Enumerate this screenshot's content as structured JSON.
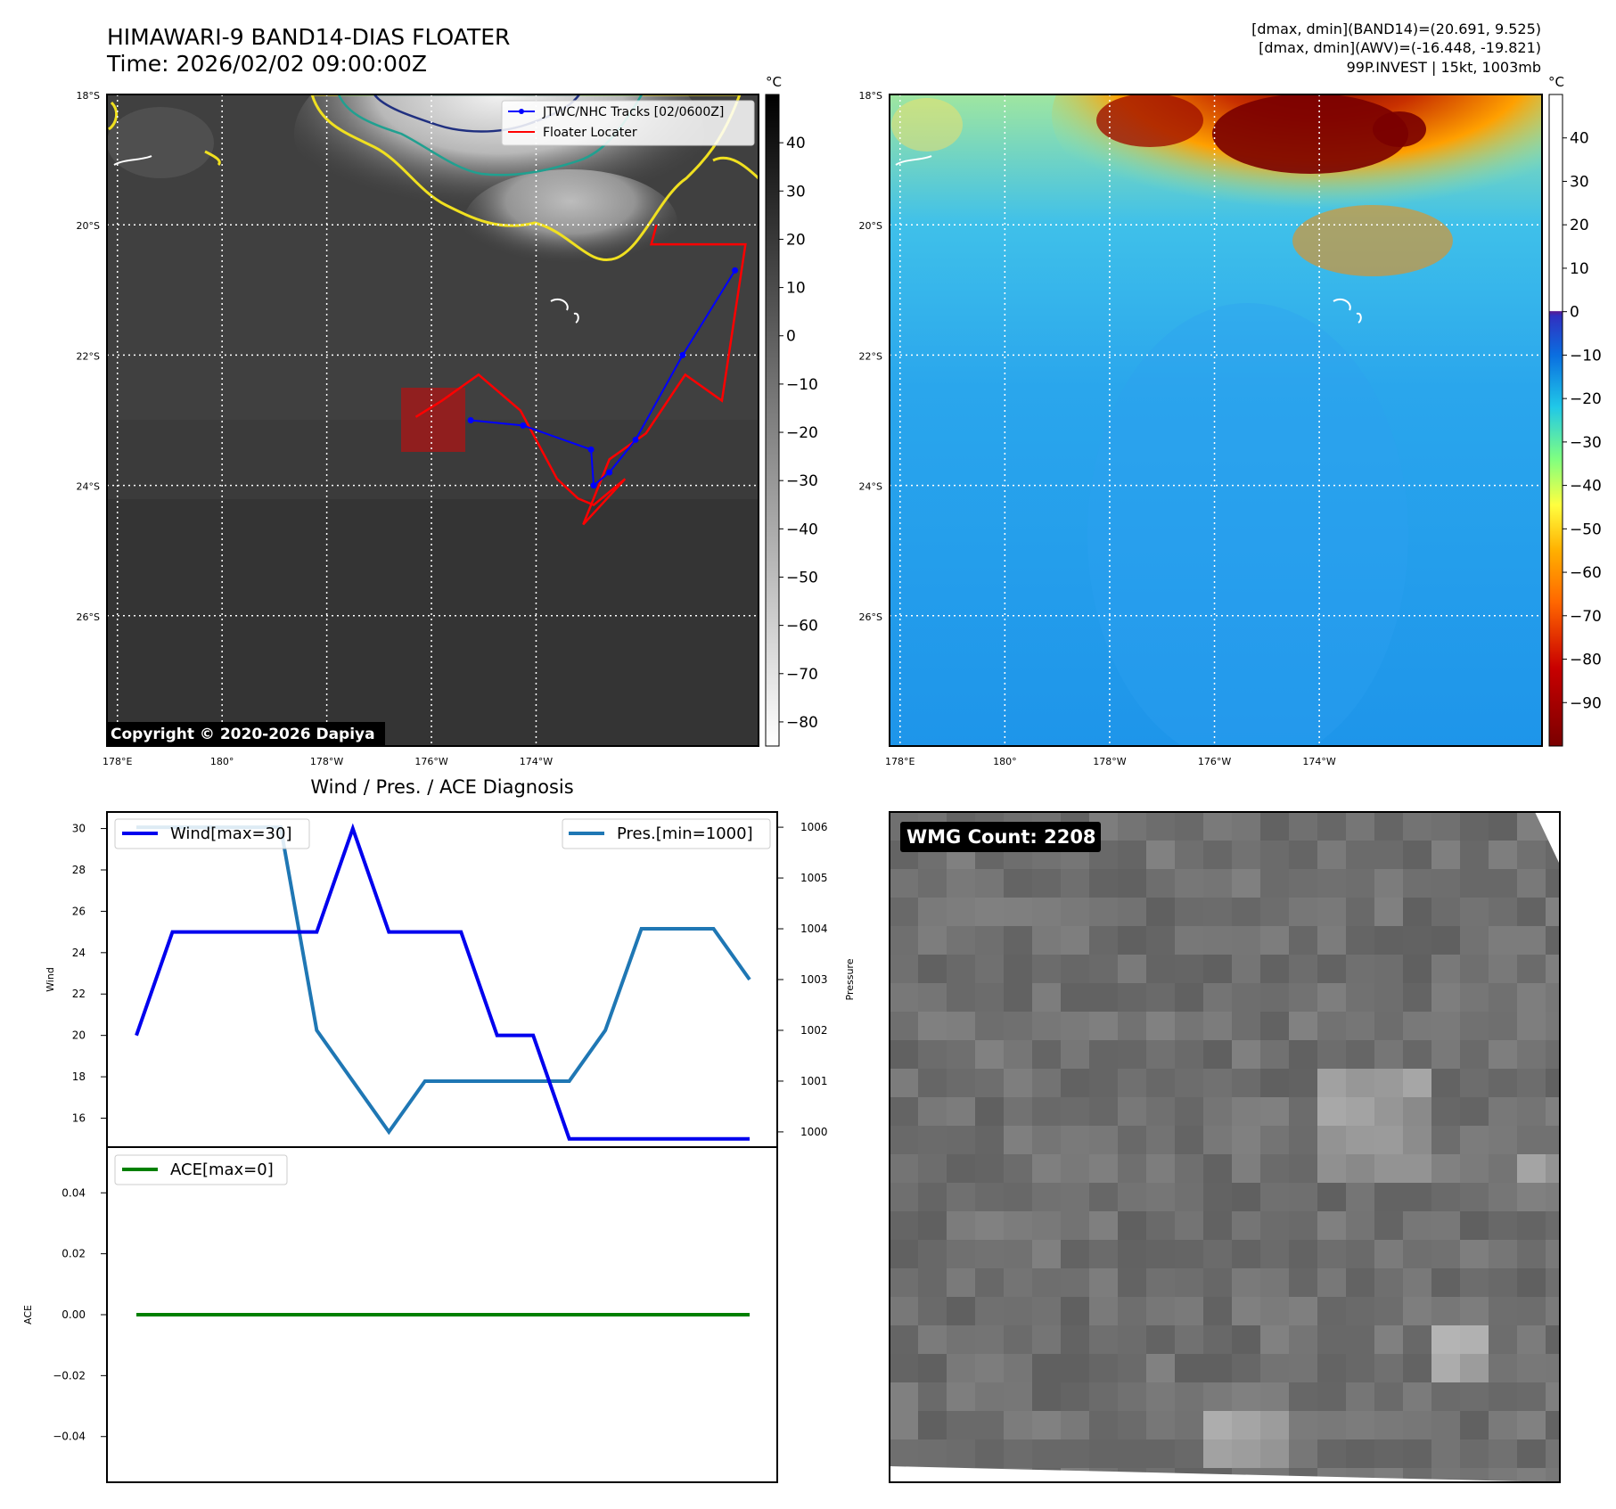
{
  "header": {
    "title_line1": "HIMAWARI-9 BAND14-DIAS FLOATER",
    "title_line2": "Time: 2026/02/02 09:00:00Z",
    "right_line1": "[dmax, dmin](BAND14)=(20.691, 9.525)",
    "right_line2": "[dmax, dmin](AWV)=(-16.448, -19.821)",
    "right_line3": "99P.INVEST | 15kt, 1003mb",
    "copyright": "Copyright © 2020-2026 Dapiya"
  },
  "map": {
    "lat_labels": [
      "18°S",
      "20°S",
      "22°S",
      "24°S",
      "26°S"
    ],
    "lon_labels": [
      "178°E",
      "180°",
      "178°W",
      "176°W",
      "174°W"
    ],
    "lat_values": [
      -18,
      -20,
      -22,
      -24,
      -26
    ],
    "lon_values": [
      178,
      180,
      182,
      184,
      186
    ],
    "legend_track": "JTWC/NHC Tracks [02/0600Z]",
    "legend_locater": "Floater Locater",
    "track_color": "#0000ff",
    "locater_color": "#ff0000",
    "track_points": [
      [
        184.75,
        -23.0
      ],
      [
        185.75,
        -23.08
      ],
      [
        187.05,
        -23.45
      ],
      [
        187.1,
        -24.0
      ],
      [
        187.4,
        -23.8
      ],
      [
        187.9,
        -23.3
      ],
      [
        188.8,
        -22.0
      ],
      [
        189.8,
        -20.7
      ]
    ],
    "locater_path": [
      [
        183.7,
        -22.95
      ],
      [
        184.2,
        -22.7
      ],
      [
        184.9,
        -22.3
      ],
      [
        185.7,
        -22.85
      ],
      [
        186.4,
        -23.9
      ],
      [
        186.8,
        -24.2
      ],
      [
        187.1,
        -24.3
      ],
      [
        187.7,
        -23.9
      ],
      [
        186.9,
        -24.6
      ],
      [
        187.4,
        -23.6
      ],
      [
        188.1,
        -23.2
      ],
      [
        188.85,
        -22.3
      ],
      [
        189.55,
        -22.7
      ],
      [
        190.0,
        -20.3
      ],
      [
        188.2,
        -20.3
      ],
      [
        188.3,
        -20.0
      ]
    ]
  },
  "colorbar_ir": {
    "unit": "°C",
    "ticks": [
      "40",
      "30",
      "20",
      "10",
      "0",
      "−10",
      "−20",
      "−30",
      "−40",
      "−50",
      "−60",
      "−70",
      "−80"
    ],
    "tick_values": [
      40,
      30,
      20,
      10,
      0,
      -10,
      -20,
      -30,
      -40,
      -50,
      -60,
      -70,
      -80
    ],
    "range": [
      -85,
      50
    ]
  },
  "colorbar_wv": {
    "unit": "°C",
    "ticks": [
      "40",
      "30",
      "20",
      "10",
      "0",
      "−10",
      "−20",
      "−30",
      "−40",
      "−50",
      "−60",
      "−70",
      "−80",
      "−90"
    ],
    "tick_values": [
      40,
      30,
      20,
      10,
      0,
      -10,
      -20,
      -30,
      -40,
      -50,
      -60,
      -70,
      -80,
      -90
    ],
    "range": [
      -100,
      50
    ]
  },
  "diagnosis": {
    "title": "Wind / Pres. / ACE Diagnosis",
    "wind_label": "Wind",
    "pressure_label": "Pressure",
    "ace_label": "ACE",
    "legend_wind": "Wind[max=30]",
    "legend_pres": "Pres.[min=1000]",
    "legend_ace": "ACE[max=0]",
    "wind_ticks": [
      "30",
      "28",
      "26",
      "24",
      "22",
      "20",
      "18",
      "16"
    ],
    "pres_ticks": [
      "1006",
      "1005",
      "1004",
      "1003",
      "1002",
      "1001",
      "1000"
    ],
    "ace_ticks": [
      "0.04",
      "0.02",
      "0.00",
      "−0.02",
      "−0.04"
    ],
    "wind_color": "#0000ee",
    "pres_color": "#1f77b4",
    "ace_color": "#008000"
  },
  "chart_data": [
    {
      "type": "line",
      "title": "Wind / Pres. / ACE Diagnosis",
      "ylabel": "Wind",
      "x": [
        0,
        1,
        2,
        3,
        4,
        5,
        6,
        7,
        8,
        9,
        10,
        11,
        12,
        13,
        14,
        15,
        16,
        17
      ],
      "series": [
        {
          "name": "Wind[max=30]",
          "axis": "left",
          "values": [
            20,
            25,
            25,
            25,
            25,
            25,
            30,
            25,
            25,
            25,
            20,
            20,
            15,
            15,
            15,
            15,
            15,
            15
          ]
        },
        {
          "name": "Pres.[min=1000]",
          "axis": "right",
          "values": [
            1006,
            1006,
            1006,
            1006,
            1006,
            1002,
            1001,
            1000,
            1001,
            1001,
            1001,
            1001,
            1001,
            1002,
            1004,
            1004,
            1004,
            1003
          ]
        }
      ],
      "ylim": [
        14.6,
        30.8
      ],
      "y2label": "Pressure",
      "y2lim": [
        999.7,
        1006.3
      ],
      "legend": "top"
    },
    {
      "type": "line",
      "ylabel": "ACE",
      "x": [
        0,
        1,
        2,
        3,
        4,
        5,
        6,
        7,
        8,
        9,
        10,
        11,
        12,
        13,
        14,
        15,
        16,
        17
      ],
      "series": [
        {
          "name": "ACE[max=0]",
          "values": [
            0,
            0,
            0,
            0,
            0,
            0,
            0,
            0,
            0,
            0,
            0,
            0,
            0,
            0,
            0,
            0,
            0,
            0
          ]
        }
      ],
      "ylim": [
        -0.055,
        0.055
      ],
      "legend": "top-left"
    }
  ],
  "wmg": {
    "label": "WMG Count: 2208"
  }
}
